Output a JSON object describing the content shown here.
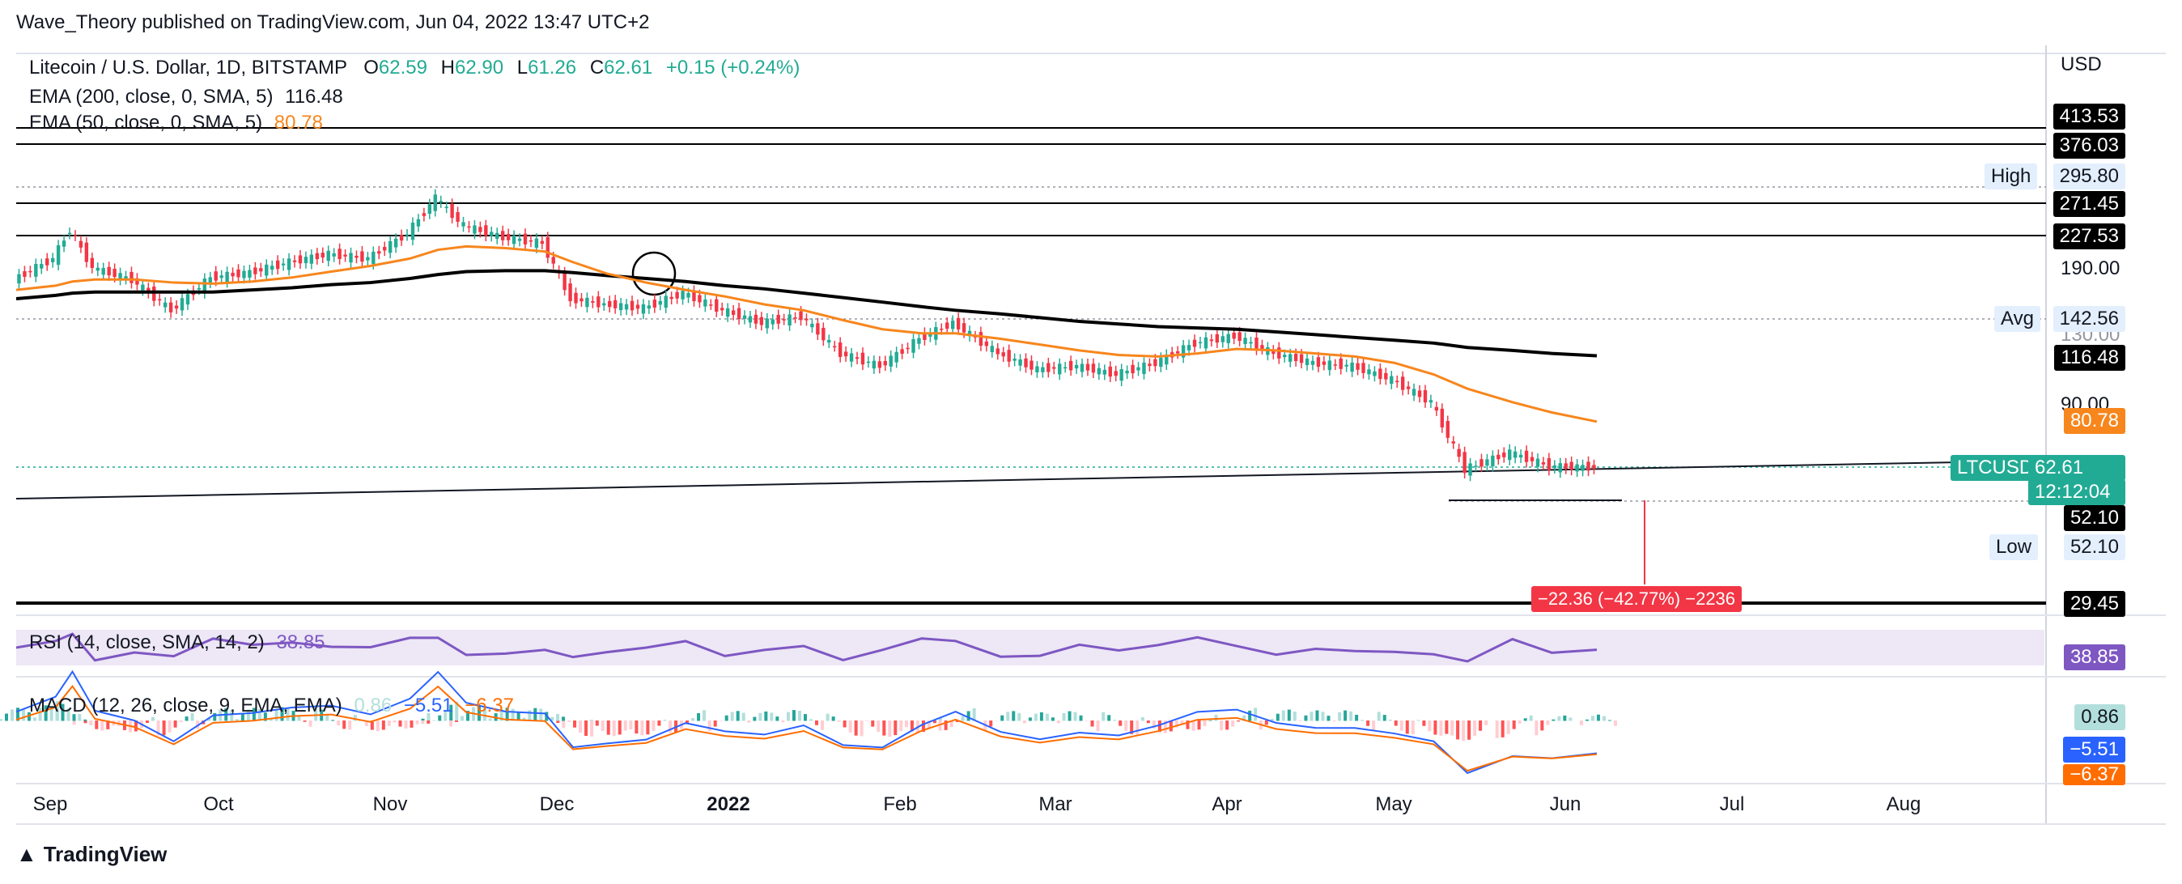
{
  "header": {
    "published": "Wave_Theory published on TradingView.com, Jun 04, 2022 13:47 UTC+2"
  },
  "legend": {
    "symbol": "Litecoin / U.S. Dollar, 1D, BITSTAMP",
    "o_label": "O",
    "o_value": "62.59",
    "h_label": "H",
    "h_value": "62.90",
    "l_label": "L",
    "l_value": "61.26",
    "c_label": "C",
    "c_value": "62.61",
    "change": "+0.15 (+0.24%)",
    "ema200_label": "EMA (200, close, 0, SMA, 5)",
    "ema200_value": "116.48",
    "ema50_label": "EMA (50, close, 0, SMA, 5)",
    "ema50_value": "80.78"
  },
  "price_axis": {
    "currency": "USD",
    "ticks": [
      "190.00",
      "130.00",
      "90.00"
    ],
    "labels": {
      "l413": "413.53",
      "l376": "376.03",
      "high_tag": "High",
      "high": "295.80",
      "l271": "271.45",
      "l227": "227.53",
      "avg_tag": "Avg",
      "avg": "142.56",
      "ema200": "116.48",
      "ema50": "80.78",
      "sym": "LTCUSD",
      "last": "62.61",
      "countdown": "12:12:04",
      "l52": "52.10",
      "low_tag": "Low",
      "low": "52.10",
      "l29": "29.45"
    }
  },
  "measure": {
    "text": "−22.36 (−42.77%) −2236"
  },
  "rsi": {
    "label": "RSI (14, close, SMA, 14, 2)",
    "value": "38.85",
    "axis_value": "38.85"
  },
  "macd": {
    "label": "MACD (12, 26, close, 9, EMA, EMA)",
    "hist": "0.86",
    "macd": "−5.51",
    "signal": "−6.37",
    "axis_hist": "0.86",
    "axis_macd": "−5.51",
    "axis_signal": "−6.37"
  },
  "time_axis": {
    "months": [
      "Sep",
      "Oct",
      "Nov",
      "Dec",
      "2022",
      "Feb",
      "Mar",
      "Apr",
      "May",
      "Jun",
      "Jul",
      "Aug"
    ]
  },
  "footer": {
    "brand": "TradingView"
  },
  "colors": {
    "up": "#22ab94",
    "down": "#f23645",
    "ema50": "#f7861d",
    "ema200": "#000000",
    "rsi": "#7e57c2",
    "macd": "#2962ff",
    "signal": "#ff6d00"
  },
  "chart_data": {
    "type": "candlestick",
    "title": "Litecoin / U.S. Dollar, 1D, BITSTAMP",
    "y_scale": "log",
    "ylim": [
      25,
      430
    ],
    "x_start": "2021-08-27",
    "key_levels": [
      413.53,
      376.03,
      271.45,
      227.53,
      52.1,
      29.45
    ],
    "dotted_levels": {
      "high": 295.8,
      "avg": 142.56,
      "low": 52.1,
      "last": 62.61
    },
    "closes_weekly": [
      {
        "date": "2021-08-27",
        "close": 178
      },
      {
        "date": "2021-09-03",
        "close": 200
      },
      {
        "date": "2021-09-06",
        "close": 235
      },
      {
        "date": "2021-09-10",
        "close": 190
      },
      {
        "date": "2021-09-17",
        "close": 178
      },
      {
        "date": "2021-09-24",
        "close": 150
      },
      {
        "date": "2021-10-01",
        "close": 180
      },
      {
        "date": "2021-10-08",
        "close": 185
      },
      {
        "date": "2021-10-15",
        "close": 196
      },
      {
        "date": "2021-10-22",
        "close": 205
      },
      {
        "date": "2021-10-29",
        "close": 200
      },
      {
        "date": "2021-11-05",
        "close": 230
      },
      {
        "date": "2021-11-10",
        "close": 280
      },
      {
        "date": "2021-11-15",
        "close": 240
      },
      {
        "date": "2021-11-22",
        "close": 225
      },
      {
        "date": "2021-11-29",
        "close": 218
      },
      {
        "date": "2021-12-04",
        "close": 160
      },
      {
        "date": "2021-12-10",
        "close": 155
      },
      {
        "date": "2021-12-17",
        "close": 152
      },
      {
        "date": "2021-12-24",
        "close": 165
      },
      {
        "date": "2021-12-31",
        "close": 150
      },
      {
        "date": "2022-01-07",
        "close": 140
      },
      {
        "date": "2022-01-14",
        "close": 145
      },
      {
        "date": "2022-01-21",
        "close": 118
      },
      {
        "date": "2022-01-28",
        "close": 110
      },
      {
        "date": "2022-02-04",
        "close": 128
      },
      {
        "date": "2022-02-10",
        "close": 140
      },
      {
        "date": "2022-02-18",
        "close": 118
      },
      {
        "date": "2022-02-25",
        "close": 108
      },
      {
        "date": "2022-03-04",
        "close": 110
      },
      {
        "date": "2022-03-11",
        "close": 105
      },
      {
        "date": "2022-03-18",
        "close": 112
      },
      {
        "date": "2022-03-25",
        "close": 125
      },
      {
        "date": "2022-04-01",
        "close": 130
      },
      {
        "date": "2022-04-08",
        "close": 118
      },
      {
        "date": "2022-04-15",
        "close": 112
      },
      {
        "date": "2022-04-22",
        "close": 110
      },
      {
        "date": "2022-04-29",
        "close": 102
      },
      {
        "date": "2022-05-06",
        "close": 90
      },
      {
        "date": "2022-05-12",
        "close": 62
      },
      {
        "date": "2022-05-20",
        "close": 68
      },
      {
        "date": "2022-05-27",
        "close": 63
      },
      {
        "date": "2022-06-04",
        "close": 62.61
      }
    ],
    "ema50_weekly": [
      168,
      172,
      176,
      178,
      178,
      175,
      174,
      176,
      180,
      186,
      192,
      200,
      210,
      214,
      212,
      208,
      196,
      184,
      175,
      168,
      162,
      155,
      150,
      142,
      135,
      132,
      132,
      128,
      124,
      120,
      117,
      116,
      118,
      121,
      120,
      118,
      116,
      112,
      105,
      97,
      90,
      85,
      80.78
    ],
    "ema200_weekly": [
      160,
      163,
      165,
      166,
      166,
      166,
      166,
      168,
      170,
      173,
      175,
      179,
      183,
      186,
      187,
      187,
      185,
      182,
      179,
      176,
      172,
      169,
      165,
      161,
      157,
      153,
      150,
      147,
      144,
      141,
      139,
      137,
      136,
      135,
      133,
      131,
      129,
      127,
      125,
      122,
      120,
      118,
      116.48
    ],
    "rsi": {
      "value": 38.85,
      "range": [
        0,
        100
      ]
    },
    "macd": {
      "hist": 0.86,
      "macd": -5.51,
      "signal": -6.37
    }
  }
}
